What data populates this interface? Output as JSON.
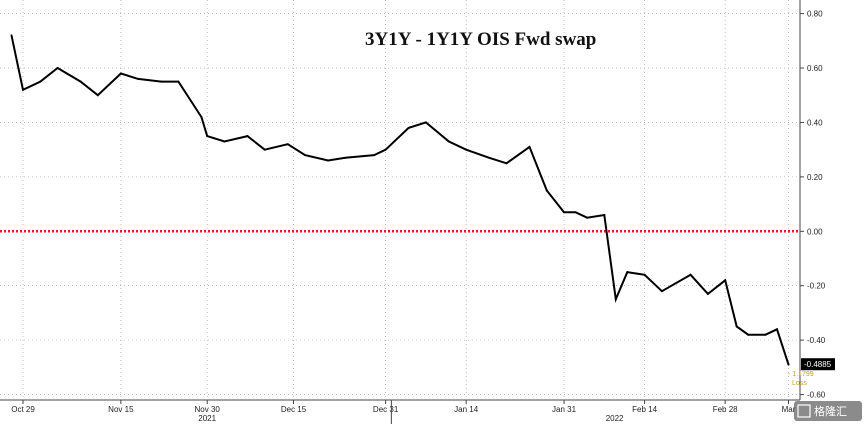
{
  "chart_data": {
    "type": "line",
    "title": "3Y1Y - 1Y1Y OIS Fwd swap",
    "xlabel": "",
    "ylabel": "",
    "ylim": [
      -0.62,
      0.85
    ],
    "y_ticks": [
      "0.80",
      "0.60",
      "0.40",
      "0.20",
      "0.00",
      "-0.20",
      "-0.40",
      "-0.60"
    ],
    "x_ticks": [
      "Oct 29",
      "Nov 15",
      "Nov 30",
      "Dec 15",
      "Dec 31",
      "Jan 14",
      "Jan 31",
      "Feb 14",
      "Feb 28",
      "Mar"
    ],
    "year_labels": [
      "2021",
      "2022"
    ],
    "reference_line": {
      "y": 0.0,
      "style": "dotted",
      "color": "#e02020"
    },
    "last_value": {
      "label": "-0.4885",
      "value": -0.4885
    },
    "annotation": {
      "value_label": "- 1.1799",
      "text": "Loss",
      "color": "#c9a227"
    },
    "series": [
      {
        "color": "#000000",
        "x": [
          "2021-10-27",
          "2021-10-29",
          "2021-11-01",
          "2021-11-04",
          "2021-11-08",
          "2021-11-11",
          "2021-11-15",
          "2021-11-18",
          "2021-11-22",
          "2021-11-25",
          "2021-11-29",
          "2021-11-30",
          "2021-12-03",
          "2021-12-07",
          "2021-12-10",
          "2021-12-14",
          "2021-12-17",
          "2021-12-21",
          "2021-12-24",
          "2021-12-29",
          "2021-12-31",
          "2022-01-04",
          "2022-01-07",
          "2022-01-11",
          "2022-01-14",
          "2022-01-18",
          "2022-01-21",
          "2022-01-25",
          "2022-01-28",
          "2022-01-31",
          "2022-02-02",
          "2022-02-04",
          "2022-02-07",
          "2022-02-09",
          "2022-02-11",
          "2022-02-14",
          "2022-02-17",
          "2022-02-22",
          "2022-02-25",
          "2022-02-28",
          "2022-03-02",
          "2022-03-04",
          "2022-03-07",
          "2022-03-09",
          "2022-03-11"
        ],
        "y": [
          0.72,
          0.52,
          0.55,
          0.6,
          0.55,
          0.5,
          0.58,
          0.56,
          0.55,
          0.55,
          0.42,
          0.35,
          0.33,
          0.35,
          0.3,
          0.32,
          0.28,
          0.26,
          0.27,
          0.28,
          0.3,
          0.38,
          0.4,
          0.33,
          0.3,
          0.27,
          0.25,
          0.31,
          0.15,
          0.07,
          0.07,
          0.05,
          0.06,
          -0.25,
          -0.15,
          -0.16,
          -0.22,
          -0.16,
          -0.23,
          -0.18,
          -0.35,
          -0.38,
          -0.38,
          -0.36,
          -0.49
        ]
      }
    ]
  },
  "watermark": {
    "text": "格隆汇"
  }
}
